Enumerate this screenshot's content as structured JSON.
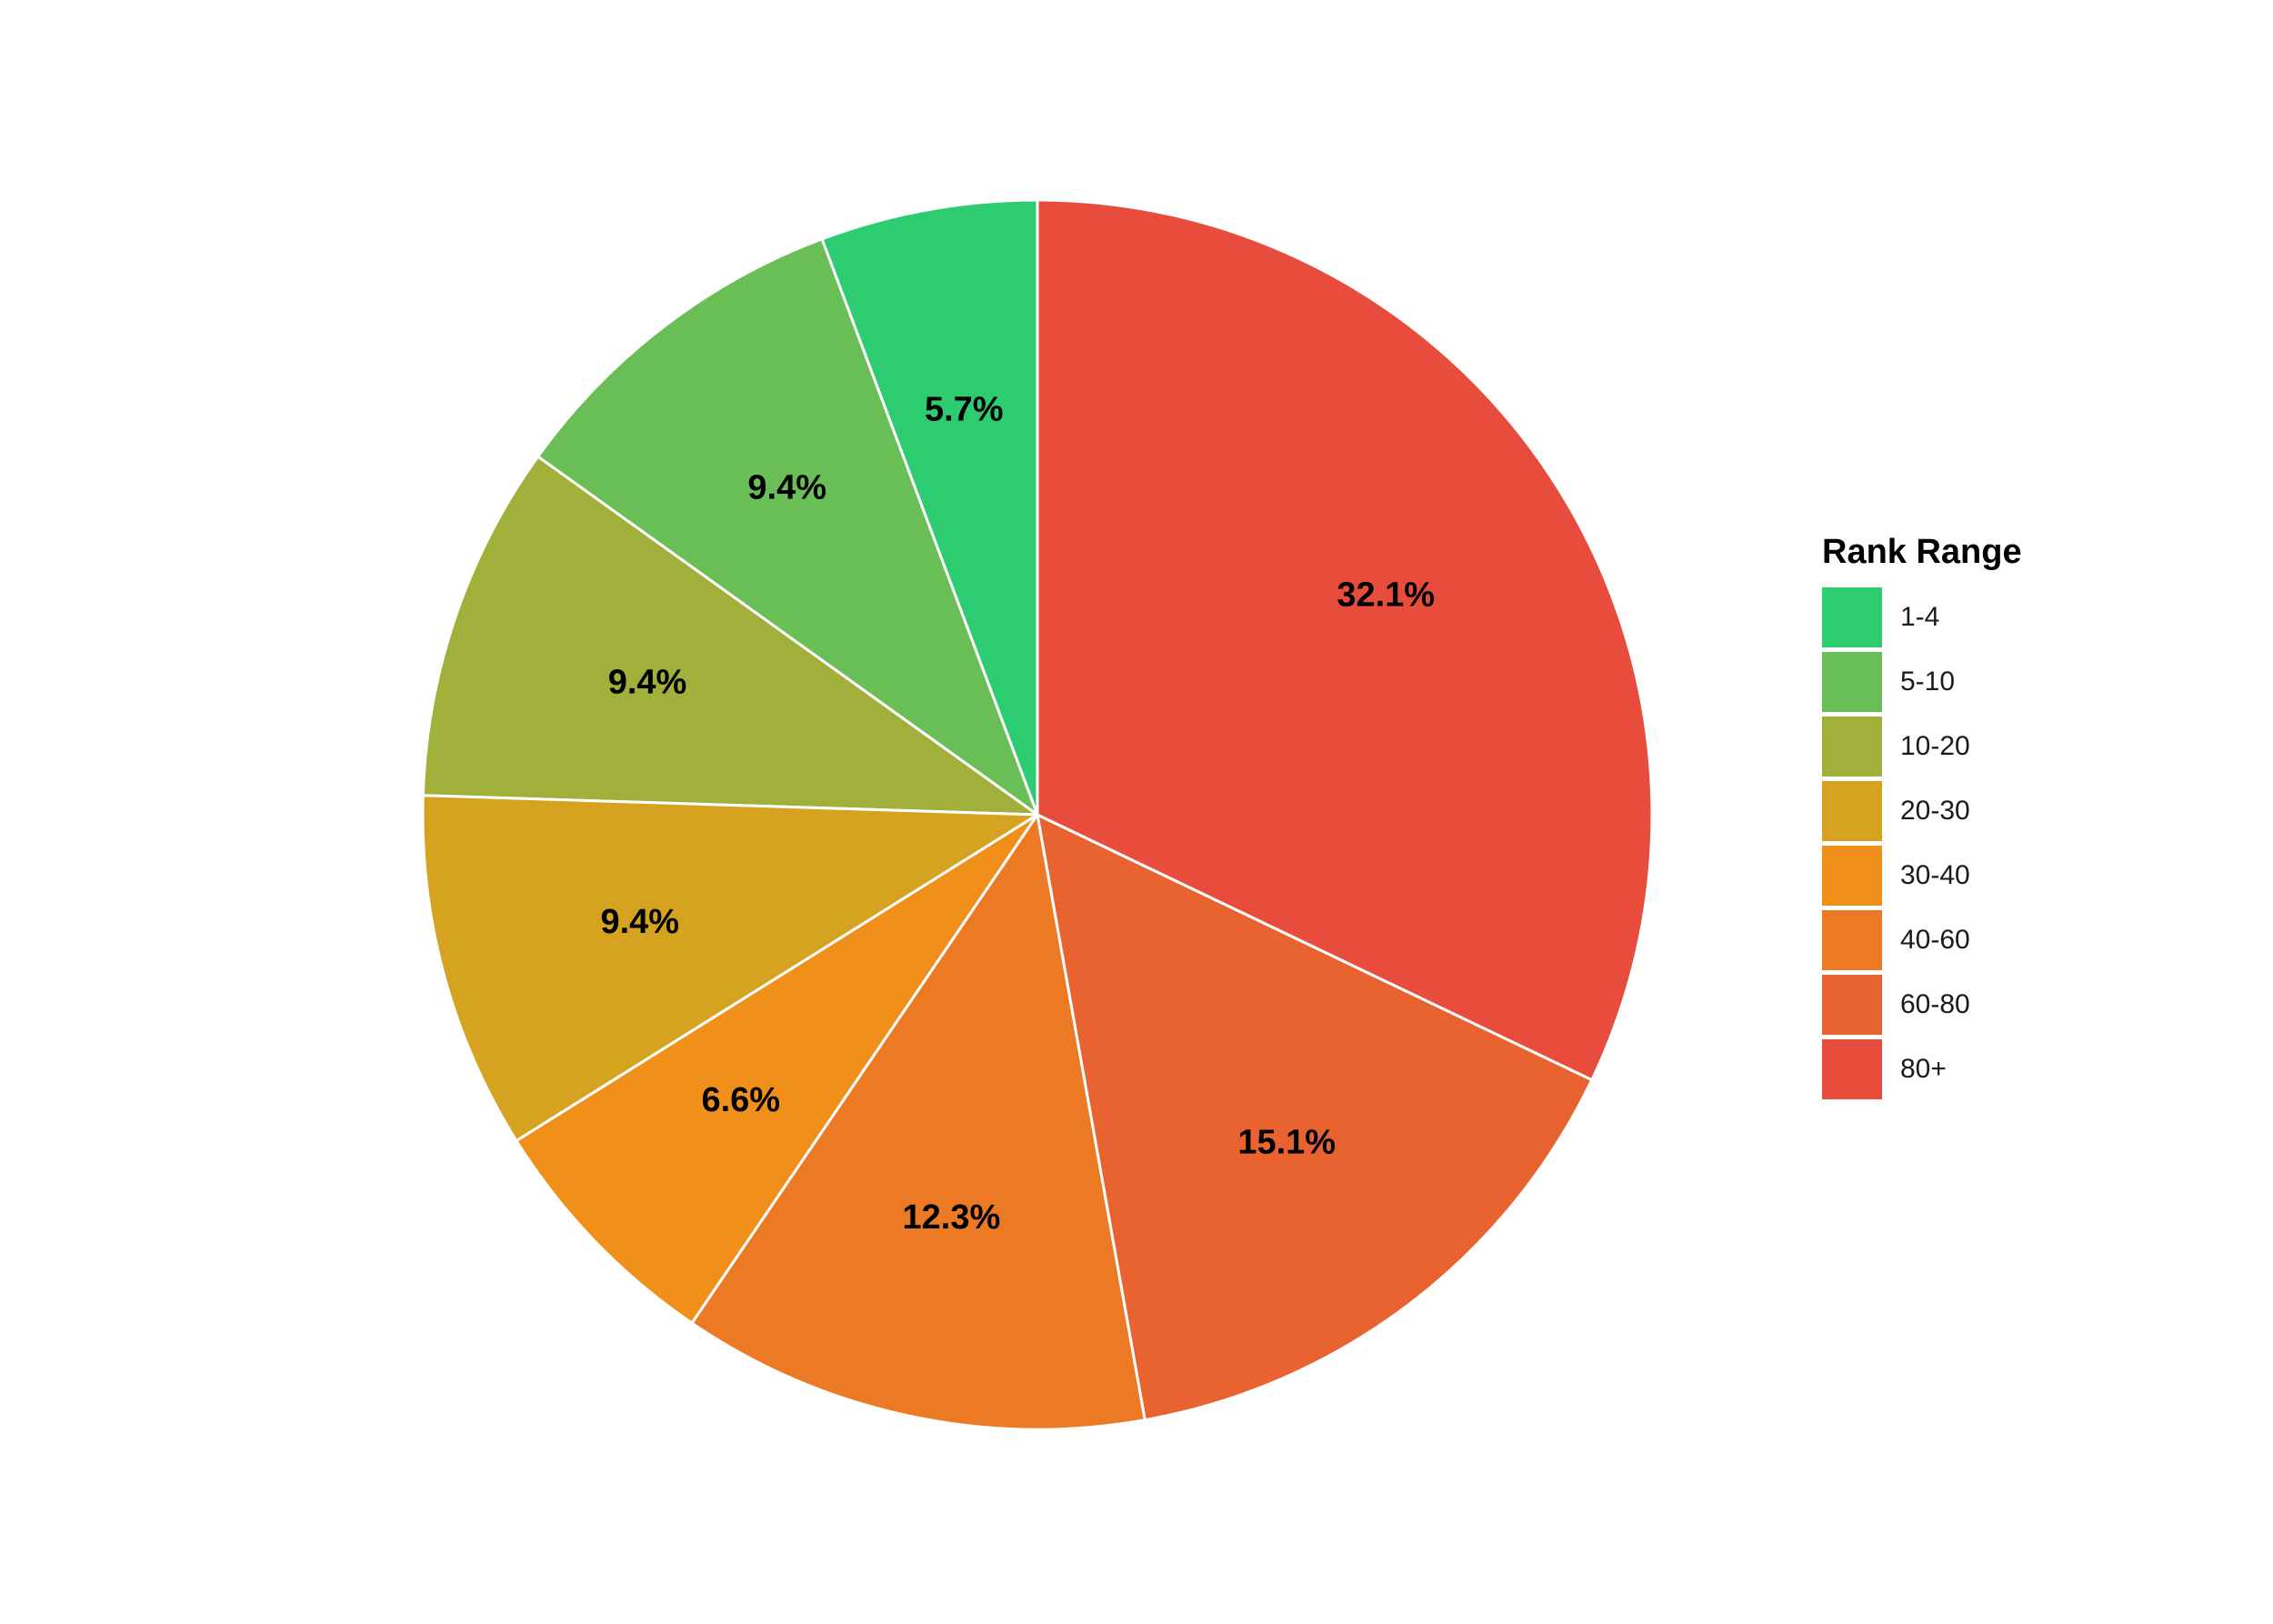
{
  "chart_data": {
    "type": "pie",
    "title": "",
    "legend": {
      "title": "Rank Range",
      "position": "right"
    },
    "slices": [
      {
        "label": "1-4",
        "value": 5.7,
        "value_label": "5.7%",
        "color": "#2ECC71"
      },
      {
        "label": "5-10",
        "value": 9.4,
        "value_label": "9.4%",
        "color": "#69BF55"
      },
      {
        "label": "10-20",
        "value": 9.4,
        "value_label": "9.4%",
        "color": "#A0B03B"
      },
      {
        "label": "20-30",
        "value": 9.4,
        "value_label": "9.4%",
        "color": "#D6A321"
      },
      {
        "label": "30-40",
        "value": 6.6,
        "value_label": "6.6%",
        "color": "#F08F1A"
      },
      {
        "label": "40-60",
        "value": 12.3,
        "value_label": "12.3%",
        "color": "#EC7A25"
      },
      {
        "label": "60-80",
        "value": 15.1,
        "value_label": "15.1%",
        "color": "#E96330"
      },
      {
        "label": "80+",
        "value": 32.1,
        "value_label": "32.1%",
        "color": "#E74C3C"
      }
    ],
    "start_angle": "12 o'clock",
    "direction": "counterclockwise from 1-4, with 80+ clockwise from top"
  }
}
